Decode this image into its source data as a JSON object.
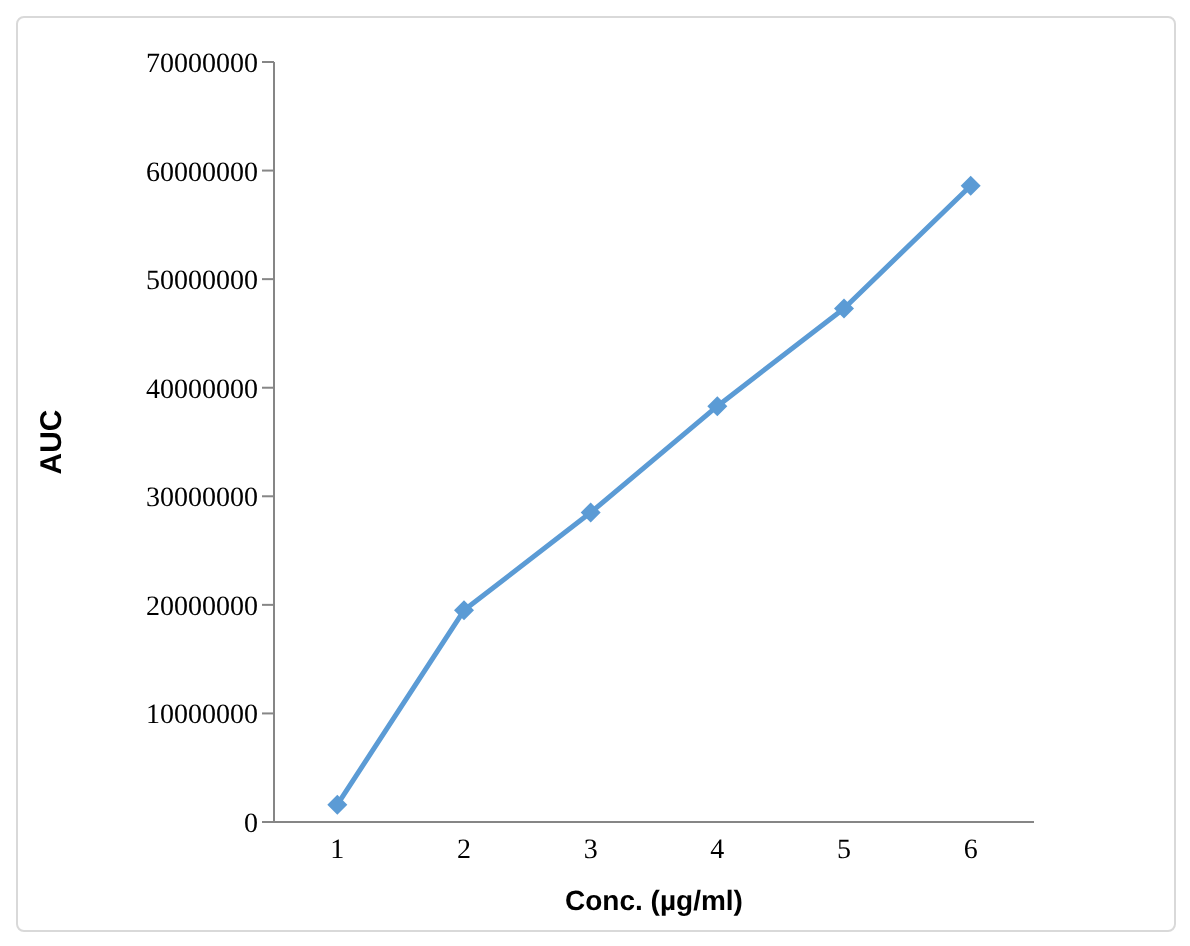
{
  "chart_data": {
    "type": "line",
    "xlabel": "Conc. (µg/ml)",
    "ylabel": "AUC",
    "categories": [
      "1",
      "2",
      "3",
      "4",
      "5",
      "6"
    ],
    "series": [
      {
        "color": "#5b9bd5",
        "values": [
          1600000,
          19500000,
          28500000,
          38300000,
          47300000,
          58600000
        ]
      }
    ],
    "ylim": [
      0,
      70000000
    ],
    "yticks": [
      0,
      10000000,
      20000000,
      30000000,
      40000000,
      50000000,
      60000000,
      70000000
    ],
    "grid": false,
    "legend": false,
    "marker": "diamond",
    "line_style": "solid"
  }
}
